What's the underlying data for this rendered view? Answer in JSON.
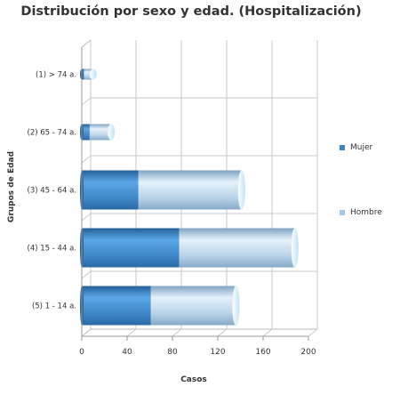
{
  "chart_data": {
    "type": "bar",
    "orientation": "horizontal",
    "stacked": true,
    "title": "Distribución por sexo y edad. (Hospitalización)",
    "xlabel": "Casos",
    "ylabel": "Grupos de Edad",
    "categories": [
      "(1) > 74 a.",
      "(2) 65 - 74 a.",
      "(3) 45 - 64 a.",
      "(4) 15 - 44 a.",
      "(5) 1 - 14 a."
    ],
    "series": [
      {
        "name": "Mujer",
        "color": "#3d86c6",
        "values": [
          2,
          7,
          50,
          86,
          61
        ]
      },
      {
        "name": "Hombre",
        "color": "#a6c8e8",
        "values": [
          8,
          19,
          91,
          102,
          75
        ]
      }
    ],
    "xlim": [
      0,
      200
    ],
    "xticks": [
      0,
      40,
      80,
      120,
      160,
      200
    ],
    "grid": true,
    "legend_position": "right"
  }
}
